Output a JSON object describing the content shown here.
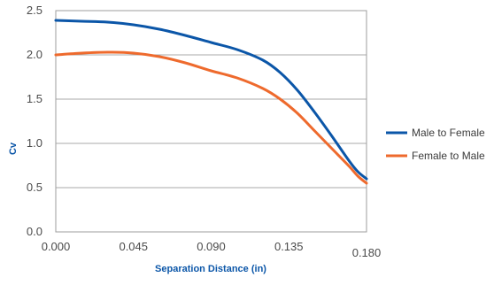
{
  "chart_data": {
    "type": "line",
    "title": "",
    "xlabel": "Separation Distance (in)",
    "ylabel": "Cv",
    "xlim": [
      0.0,
      0.18
    ],
    "ylim": [
      0.0,
      2.5
    ],
    "x_ticks": [
      "0.000",
      "0.045",
      "0.090",
      "0.135",
      "0.180"
    ],
    "y_ticks": [
      "0.0",
      "0.5",
      "1.0",
      "1.5",
      "2.0",
      "2.5"
    ],
    "grid": "horizontal",
    "legend_position": "right",
    "series": [
      {
        "name": "Male to Female",
        "color": "#0b56a8",
        "x": [
          0.0,
          0.015,
          0.03,
          0.045,
          0.06,
          0.075,
          0.09,
          0.105,
          0.12,
          0.13,
          0.14,
          0.15,
          0.16,
          0.17,
          0.175,
          0.18
        ],
        "y": [
          2.39,
          2.38,
          2.37,
          2.34,
          2.29,
          2.22,
          2.14,
          2.06,
          1.94,
          1.8,
          1.6,
          1.35,
          1.08,
          0.8,
          0.68,
          0.6
        ]
      },
      {
        "name": "Female to Male",
        "color": "#ee6a2d",
        "x": [
          0.0,
          0.015,
          0.03,
          0.045,
          0.06,
          0.075,
          0.09,
          0.105,
          0.12,
          0.13,
          0.14,
          0.15,
          0.16,
          0.17,
          0.175,
          0.18
        ],
        "y": [
          2.0,
          2.02,
          2.03,
          2.02,
          1.98,
          1.91,
          1.82,
          1.74,
          1.62,
          1.5,
          1.34,
          1.14,
          0.94,
          0.74,
          0.63,
          0.55
        ]
      }
    ]
  }
}
